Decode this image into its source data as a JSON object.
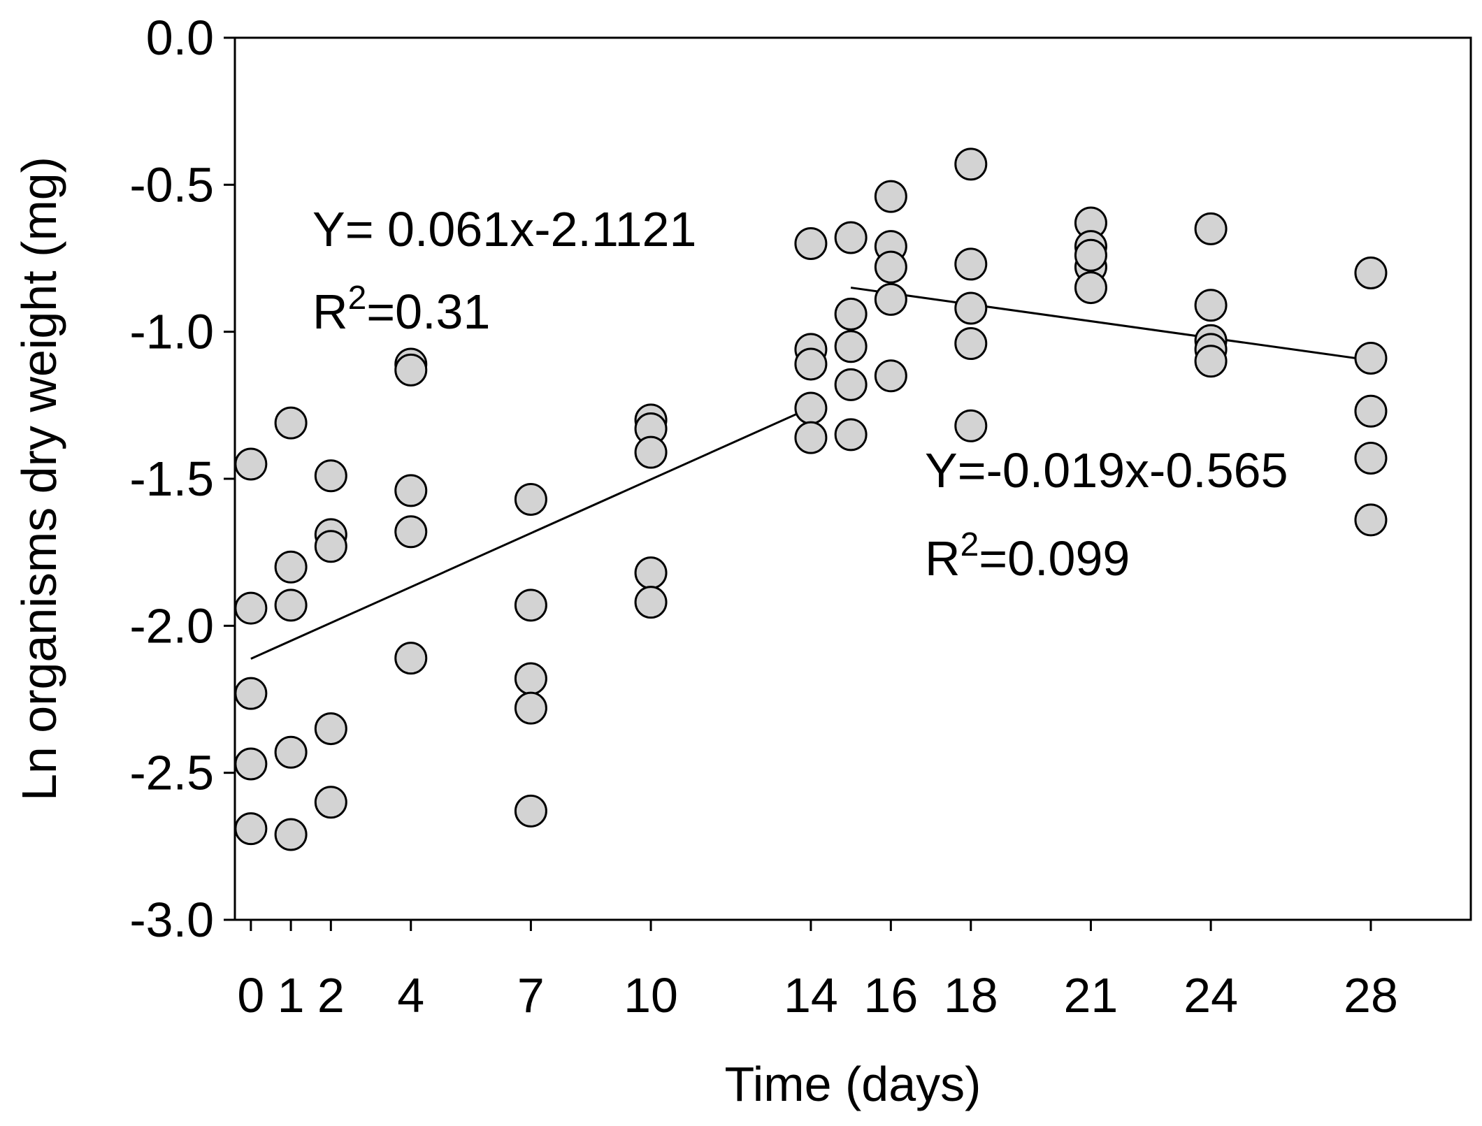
{
  "chart_data": {
    "type": "scatter",
    "title": "",
    "xlabel": "Time (days)",
    "ylabel": "Ln organisms dry weight (mg)",
    "xlim": [
      -0.4,
      30.5
    ],
    "ylim": [
      -3.0,
      0.0
    ],
    "x_ticks": [
      0,
      1,
      2,
      4,
      7,
      10,
      14,
      16,
      18,
      21,
      24,
      28
    ],
    "x_tick_labels": [
      "0",
      "1",
      "2",
      "4",
      "7",
      "10",
      "14",
      "16",
      "18",
      "21",
      "24",
      "28"
    ],
    "y_ticks": [
      0.0,
      -0.5,
      -1.0,
      -1.5,
      -2.0,
      -2.5,
      -3.0
    ],
    "y_tick_labels": [
      "0.0",
      "-0.5",
      "-1.0",
      "-1.5",
      "-2.0",
      "-2.5",
      "-3.0"
    ],
    "grid": false,
    "colors": {
      "marker_fill": "#d3d3d3",
      "marker_edge": "#000000",
      "line": "#000000"
    },
    "points": [
      {
        "x": 0,
        "y": -1.45
      },
      {
        "x": 0,
        "y": -1.94
      },
      {
        "x": 0,
        "y": -2.23
      },
      {
        "x": 0,
        "y": -2.47
      },
      {
        "x": 0,
        "y": -2.69
      },
      {
        "x": 1,
        "y": -1.31
      },
      {
        "x": 1,
        "y": -1.8
      },
      {
        "x": 1,
        "y": -1.93
      },
      {
        "x": 1,
        "y": -2.43
      },
      {
        "x": 1,
        "y": -2.71
      },
      {
        "x": 2,
        "y": -1.49
      },
      {
        "x": 2,
        "y": -1.69
      },
      {
        "x": 2,
        "y": -1.73
      },
      {
        "x": 2,
        "y": -2.35
      },
      {
        "x": 2,
        "y": -2.6
      },
      {
        "x": 4,
        "y": -1.11
      },
      {
        "x": 4,
        "y": -1.13
      },
      {
        "x": 4,
        "y": -1.54
      },
      {
        "x": 4,
        "y": -1.68
      },
      {
        "x": 4,
        "y": -2.11
      },
      {
        "x": 7,
        "y": -1.57
      },
      {
        "x": 7,
        "y": -1.93
      },
      {
        "x": 7,
        "y": -2.18
      },
      {
        "x": 7,
        "y": -2.28
      },
      {
        "x": 7,
        "y": -2.63
      },
      {
        "x": 10,
        "y": -1.3
      },
      {
        "x": 10,
        "y": -1.33
      },
      {
        "x": 10,
        "y": -1.41
      },
      {
        "x": 10,
        "y": -1.82
      },
      {
        "x": 10,
        "y": -1.92
      },
      {
        "x": 14,
        "y": -0.7
      },
      {
        "x": 14,
        "y": -1.06
      },
      {
        "x": 14,
        "y": -1.11
      },
      {
        "x": 14,
        "y": -1.26
      },
      {
        "x": 14,
        "y": -1.36
      },
      {
        "x": 15,
        "y": -0.68
      },
      {
        "x": 15,
        "y": -0.94
      },
      {
        "x": 15,
        "y": -1.05
      },
      {
        "x": 15,
        "y": -1.18
      },
      {
        "x": 15,
        "y": -1.35
      },
      {
        "x": 16,
        "y": -0.54
      },
      {
        "x": 16,
        "y": -0.71
      },
      {
        "x": 16,
        "y": -0.78
      },
      {
        "x": 16,
        "y": -0.89
      },
      {
        "x": 16,
        "y": -1.15
      },
      {
        "x": 18,
        "y": -0.43
      },
      {
        "x": 18,
        "y": -0.77
      },
      {
        "x": 18,
        "y": -0.92
      },
      {
        "x": 18,
        "y": -1.04
      },
      {
        "x": 18,
        "y": -1.32
      },
      {
        "x": 21,
        "y": -0.63
      },
      {
        "x": 21,
        "y": -0.71
      },
      {
        "x": 21,
        "y": -0.78
      },
      {
        "x": 21,
        "y": -0.85
      },
      {
        "x": 21,
        "y": -0.74
      },
      {
        "x": 24,
        "y": -0.65
      },
      {
        "x": 24,
        "y": -0.91
      },
      {
        "x": 24,
        "y": -1.03
      },
      {
        "x": 24,
        "y": -1.06
      },
      {
        "x": 24,
        "y": -1.1
      },
      {
        "x": 28,
        "y": -0.8
      },
      {
        "x": 28,
        "y": -1.09
      },
      {
        "x": 28,
        "y": -1.27
      },
      {
        "x": 28,
        "y": -1.43
      },
      {
        "x": 28,
        "y": -1.64
      }
    ],
    "fit_lines": [
      {
        "name": "fit-0-14",
        "x_range": [
          0,
          14
        ],
        "slope": 0.061,
        "intercept": -2.1121,
        "equation": "Y= 0.061x-2.1121",
        "r2_prefix": "R",
        "r2_exponent": "2",
        "r2_value": "=0.31"
      },
      {
        "name": "fit-15-28",
        "x_range": [
          15,
          28
        ],
        "slope": -0.019,
        "intercept": -0.565,
        "equation": "Y=-0.019x-0.565",
        "r2_prefix": "R",
        "r2_exponent": "2",
        "r2_value": "=0.099"
      }
    ]
  }
}
